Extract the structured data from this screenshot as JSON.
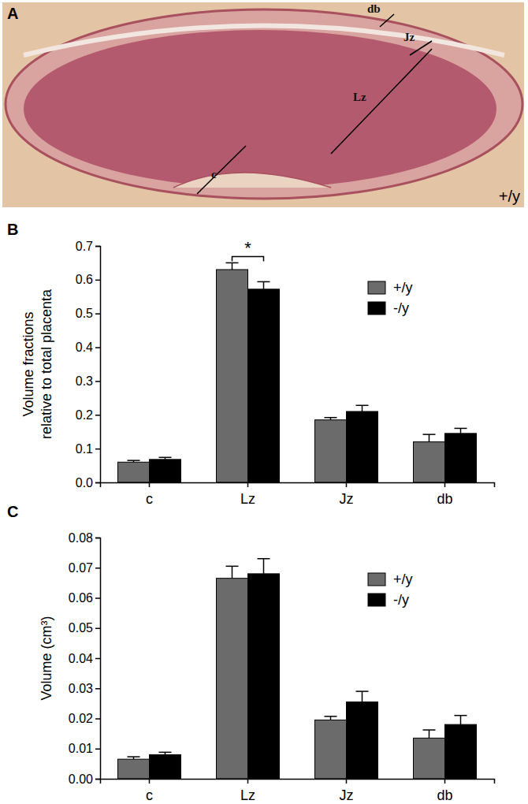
{
  "image_panel": {
    "panel_label": "A",
    "labels": [
      "db",
      "Jz",
      "Lz",
      "c"
    ],
    "genotype": "+/y"
  },
  "chart_data": [
    {
      "type": "bar",
      "panel_label": "B",
      "y_label": [
        "Volume fractions",
        "relative to total placenta"
      ],
      "categories": [
        "c",
        "Lz",
        "Jz",
        "db"
      ],
      "series": [
        {
          "name": "+/y",
          "color": "#6b6b6b",
          "values": [
            0.06,
            0.63,
            0.185,
            0.12
          ],
          "errors": [
            0.005,
            0.02,
            0.007,
            0.022
          ]
        },
        {
          "name": "-/y",
          "color": "#000000",
          "values": [
            0.068,
            0.572,
            0.21,
            0.145
          ],
          "errors": [
            0.006,
            0.022,
            0.018,
            0.015
          ]
        }
      ],
      "ylim": [
        0,
        0.7
      ],
      "yticks": [
        {
          "value": 0,
          "label": "0.0"
        },
        0.1,
        0.2,
        0.3,
        0.4,
        0.5,
        0.6,
        0.7
      ],
      "legend": "top-right",
      "significance": [
        {
          "category": "Lz",
          "text": "*"
        }
      ]
    },
    {
      "type": "bar",
      "panel_label": "C",
      "y_label": [
        "Volume (cm³)"
      ],
      "categories": [
        "c",
        "Lz",
        "Jz",
        "db"
      ],
      "series": [
        {
          "name": "+/y",
          "color": "#6b6b6b",
          "values": [
            0.0065,
            0.0665,
            0.0195,
            0.0135
          ],
          "errors": [
            0.0008,
            0.004,
            0.0012,
            0.0027
          ]
        },
        {
          "name": "-/y",
          "color": "#000000",
          "values": [
            0.008,
            0.068,
            0.0255,
            0.018
          ],
          "errors": [
            0.0008,
            0.005,
            0.0035,
            0.003
          ]
        }
      ],
      "ylim": [
        0,
        0.08
      ],
      "yticks": [
        {
          "value": 0,
          "label": "0.00"
        },
        0.01,
        0.02,
        0.03,
        0.04,
        0.05,
        0.06,
        0.07,
        0.08
      ],
      "legend": "top-right"
    }
  ]
}
